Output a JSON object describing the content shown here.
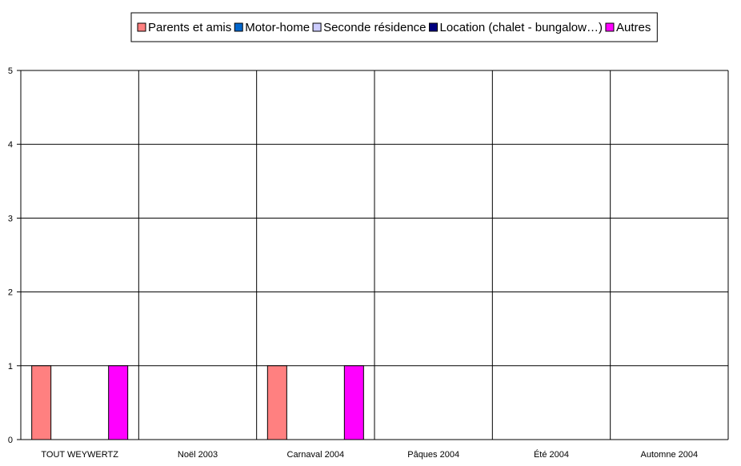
{
  "chart_data": {
    "type": "bar",
    "title": "",
    "xlabel": "",
    "ylabel": "",
    "ylim": [
      0,
      5
    ],
    "yticks": [
      "0",
      "1",
      "2",
      "3",
      "4",
      "5"
    ],
    "grid": true,
    "legend_position": "top",
    "categories": [
      "TOUT WEYWERTZ",
      "Noël 2003",
      "Carnaval 2004",
      "Pâques 2004",
      "Été 2004",
      "Automne 2004"
    ],
    "series": [
      {
        "name": "Parents et amis",
        "color": "#ff8080",
        "values": [
          1,
          0,
          1,
          0,
          0,
          0
        ]
      },
      {
        "name": "Motor-home",
        "color": "#0066cc",
        "values": [
          0,
          0,
          0,
          0,
          0,
          0
        ]
      },
      {
        "name": "Seconde résidence",
        "color": "#ccccff",
        "values": [
          0,
          0,
          0,
          0,
          0,
          0
        ]
      },
      {
        "name": "Location (chalet - bungalow…)",
        "color": "#000080",
        "values": [
          0,
          0,
          0,
          0,
          0,
          0
        ]
      },
      {
        "name": "Autres",
        "color": "#ff00ff",
        "values": [
          1,
          0,
          1,
          0,
          0,
          0
        ]
      }
    ]
  }
}
